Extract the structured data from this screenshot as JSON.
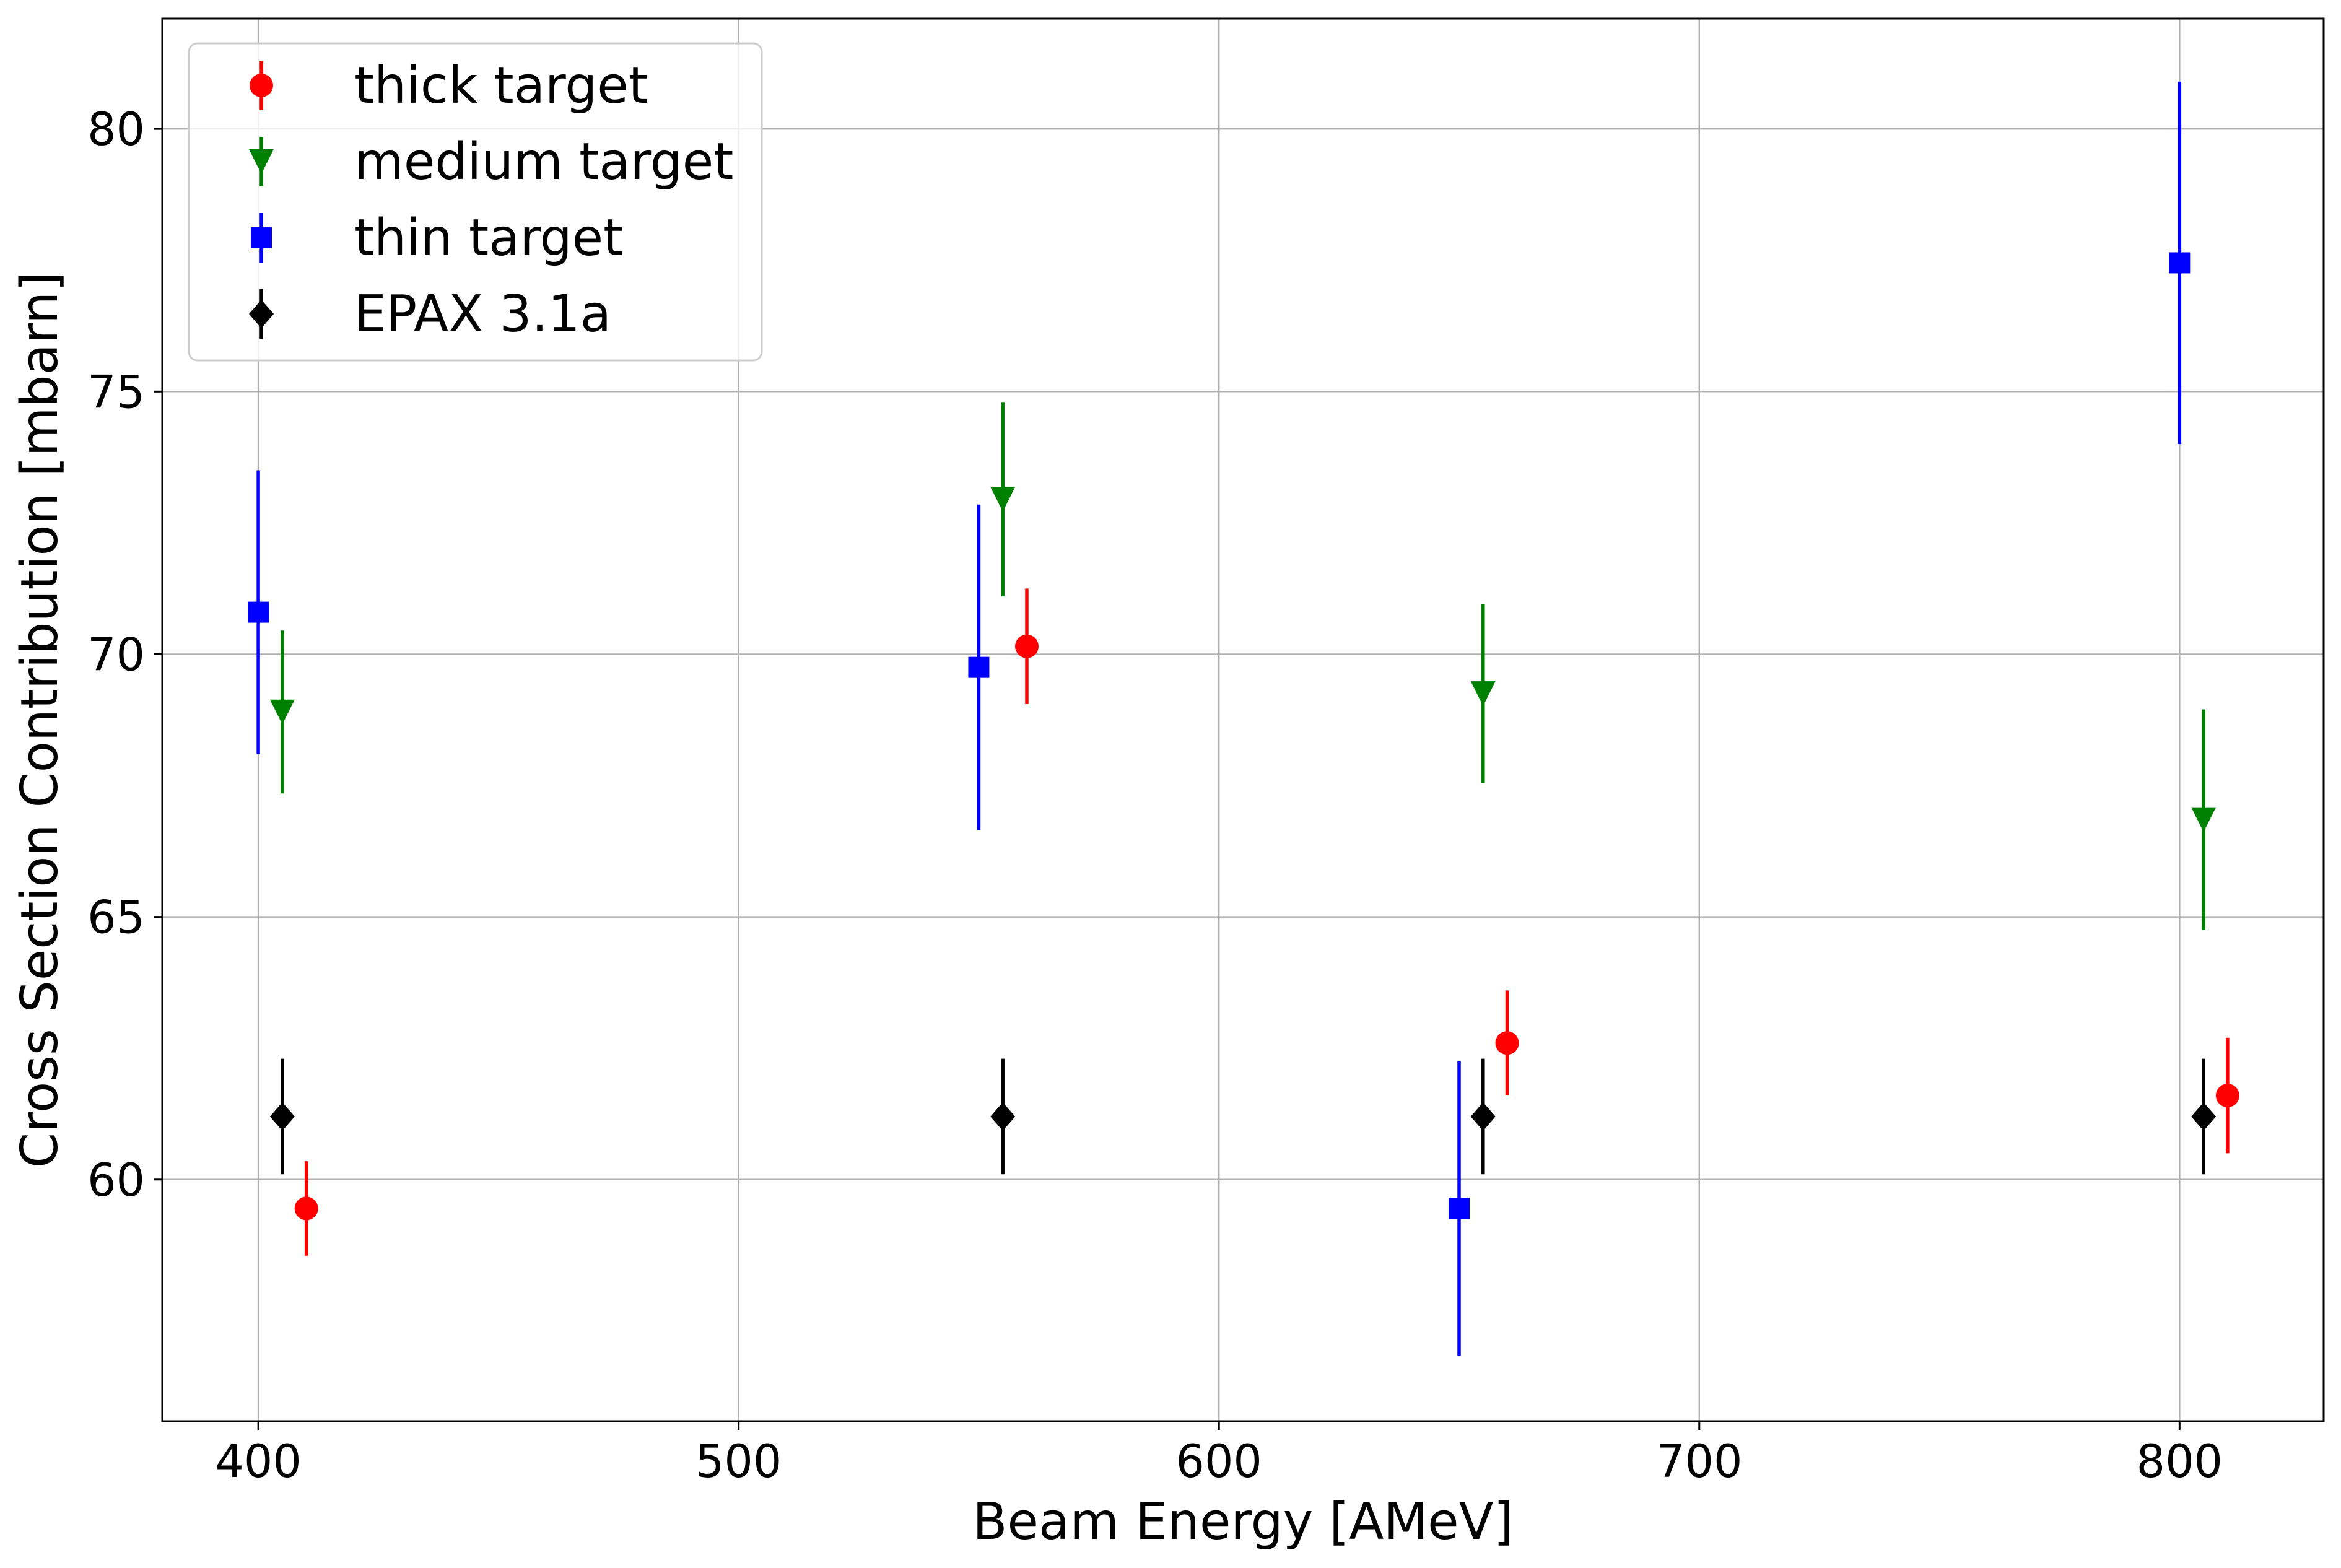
{
  "chart_data": {
    "type": "scatter",
    "title": "",
    "xlabel": "Beam Energy [AMeV]",
    "ylabel": "Cross Section Contribution [mbarn]",
    "xlim": [
      380,
      830
    ],
    "ylim": [
      55.4,
      82.1
    ],
    "xticks": [
      400,
      500,
      600,
      700,
      800
    ],
    "yticks": [
      60,
      65,
      70,
      75,
      80
    ],
    "grid": true,
    "legend_position": "top-left",
    "series": [
      {
        "name": "thick target",
        "marker": "circle",
        "color": "#ff0000",
        "points": [
          {
            "x": 410,
            "y": 59.45,
            "err": 0.9
          },
          {
            "x": 560,
            "y": 70.15,
            "err": 1.1
          },
          {
            "x": 660,
            "y": 62.6,
            "err": 1.0
          },
          {
            "x": 810,
            "y": 61.6,
            "err": 1.1
          }
        ]
      },
      {
        "name": "medium target",
        "marker": "triangle-down",
        "color": "#008000",
        "points": [
          {
            "x": 405,
            "y": 68.9,
            "err": 1.55
          },
          {
            "x": 555,
            "y": 72.95,
            "err": 1.85
          },
          {
            "x": 655,
            "y": 69.25,
            "err": 1.7
          },
          {
            "x": 805,
            "y": 66.85,
            "err": 2.1
          }
        ]
      },
      {
        "name": "thin target",
        "marker": "square",
        "color": "#0000ff",
        "points": [
          {
            "x": 400,
            "y": 70.8,
            "err": 2.7
          },
          {
            "x": 550,
            "y": 69.75,
            "err": 3.1
          },
          {
            "x": 650,
            "y": 59.45,
            "err": 2.8
          },
          {
            "x": 800,
            "y": 77.45,
            "err": 3.45
          }
        ]
      },
      {
        "name": "EPAX 3.1a",
        "marker": "diamond",
        "color": "#000000",
        "points": [
          {
            "x": 405,
            "y": 61.2,
            "err": 1.1
          },
          {
            "x": 555,
            "y": 61.2,
            "err": 1.1
          },
          {
            "x": 655,
            "y": 61.2,
            "err": 1.1
          },
          {
            "x": 805,
            "y": 61.2,
            "err": 1.1
          }
        ]
      }
    ]
  }
}
